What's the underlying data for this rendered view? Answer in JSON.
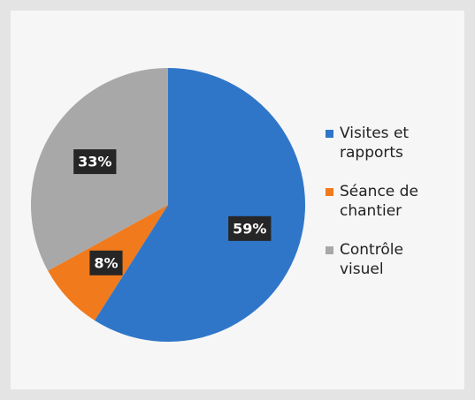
{
  "chart_data": {
    "type": "pie",
    "categories": [
      "Visites et rapports",
      "Séance de chantier",
      "Contrôle visuel"
    ],
    "values": [
      59,
      8,
      33
    ],
    "value_labels": [
      "59%",
      "8%",
      "33%"
    ],
    "colors": [
      "#2f76c9",
      "#f07a1c",
      "#a8a8a8"
    ]
  }
}
